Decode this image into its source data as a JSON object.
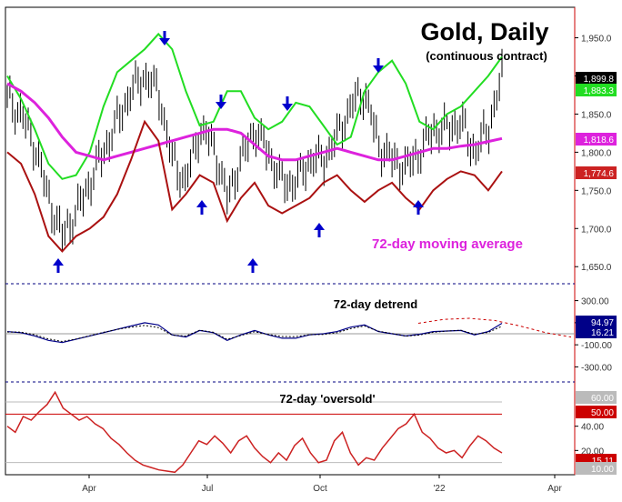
{
  "chart_data": {
    "type": "line",
    "title": "Gold, Daily",
    "subtitle": "(continuous contract)",
    "x_axis": {
      "ticks": [
        "Apr",
        "Jul",
        "Oct",
        "'22",
        "Apr"
      ]
    },
    "price_panel": {
      "ylim": [
        1630,
        1990
      ],
      "y_ticks": [
        1950,
        1900,
        1850,
        1800,
        1750,
        1700,
        1650
      ],
      "y_tick_labels": [
        "1,950.0",
        "1,900.0",
        "1,850.0",
        "1,800.0",
        "1,750.0",
        "1,700.0",
        "1,650.0"
      ],
      "annotation": "72-day moving average",
      "value_tags": [
        {
          "label": "1,899.8",
          "value": 1899.8,
          "color": "#000000"
        },
        {
          "label": "1,883.3",
          "value": 1883.3,
          "color": "#22dd22"
        },
        {
          "label": "1,818.6",
          "value": 1818.6,
          "color": "#dd22dd"
        },
        {
          "label": "1,774.6",
          "value": 1774.6,
          "color": "#cc2222"
        }
      ],
      "series": [
        {
          "name": "Upper band",
          "color": "#22dd22",
          "values": [
            1900,
            1870,
            1830,
            1785,
            1765,
            1770,
            1800,
            1860,
            1905,
            1920,
            1935,
            1955,
            1935,
            1880,
            1835,
            1840,
            1880,
            1880,
            1845,
            1830,
            1840,
            1865,
            1860,
            1835,
            1810,
            1820,
            1880,
            1905,
            1920,
            1890,
            1840,
            1830,
            1850,
            1860,
            1880,
            1900,
            1925
          ]
        },
        {
          "name": "Price",
          "color": "#000000",
          "values": [
            1870,
            1850,
            1810,
            1740,
            1690,
            1720,
            1760,
            1800,
            1840,
            1880,
            1900,
            1880,
            1790,
            1760,
            1830,
            1810,
            1740,
            1790,
            1830,
            1800,
            1760,
            1760,
            1790,
            1790,
            1820,
            1860,
            1880,
            1810,
            1790,
            1780,
            1800,
            1830,
            1830,
            1840,
            1800,
            1830,
            1900
          ]
        },
        {
          "name": "72-day moving average",
          "color": "#dd22dd",
          "values": [
            1890,
            1880,
            1865,
            1845,
            1820,
            1800,
            1795,
            1790,
            1795,
            1800,
            1805,
            1810,
            1815,
            1820,
            1825,
            1830,
            1830,
            1825,
            1810,
            1795,
            1790,
            1790,
            1795,
            1800,
            1805,
            1800,
            1795,
            1790,
            1790,
            1795,
            1800,
            1805,
            1805,
            1808,
            1810,
            1814,
            1818
          ]
        },
        {
          "name": "Lower band",
          "color": "#aa1111",
          "values": [
            1800,
            1785,
            1745,
            1690,
            1670,
            1690,
            1700,
            1715,
            1745,
            1790,
            1840,
            1815,
            1725,
            1745,
            1770,
            1760,
            1710,
            1740,
            1760,
            1730,
            1720,
            1730,
            1740,
            1760,
            1770,
            1750,
            1735,
            1750,
            1760,
            1740,
            1725,
            1750,
            1765,
            1775,
            1770,
            1750,
            1775
          ]
        }
      ]
    },
    "detrend_panel": {
      "label": "72-day detrend",
      "ylim": [
        -420,
        420
      ],
      "y_tick_labels": [
        "300.00",
        "100.00",
        "-100.00",
        "-300.00"
      ],
      "y_ticks": [
        300,
        100,
        -100,
        -300
      ],
      "value_tags": [
        {
          "label": "94.97",
          "value": 94.97,
          "color": "#000088"
        },
        {
          "label": "16.21",
          "value": 16.21,
          "color": "#000088"
        }
      ],
      "series": [
        {
          "name": "Detrend",
          "color": "#000088",
          "values": [
            20,
            10,
            -20,
            -60,
            -80,
            -50,
            -20,
            10,
            40,
            70,
            100,
            80,
            -10,
            -30,
            30,
            10,
            -60,
            -10,
            30,
            -10,
            -40,
            -40,
            -10,
            0,
            20,
            60,
            80,
            20,
            0,
            -20,
            -5,
            20,
            25,
            30,
            -10,
            20,
            95
          ]
        },
        {
          "name": "Projected cycle",
          "color": "#cc0000",
          "values": [
            95,
            130,
            140,
            120,
            70,
            10,
            -30
          ]
        }
      ]
    },
    "oversold_panel": {
      "label": "72-day 'oversold'",
      "ylim": [
        0,
        75
      ],
      "y_tick_labels": [
        "60.00",
        "50.00",
        "40.00",
        "20.00",
        "15.11",
        "10.00"
      ],
      "upper_line": 60,
      "lower_line": 50,
      "value_tags": [
        {
          "label": "60.00",
          "value": 60,
          "color": "#bbbbbb"
        },
        {
          "label": "50.00",
          "value": 50,
          "color": "#cc0000"
        },
        {
          "label": "15.11",
          "value": 15.11,
          "color": "#cc0000"
        },
        {
          "label": "10.00",
          "value": 10,
          "color": "#bbbbbb"
        }
      ],
      "series": [
        {
          "name": "Oversold",
          "color": "#cc2222",
          "values": [
            40,
            35,
            48,
            45,
            52,
            58,
            68,
            55,
            50,
            45,
            48,
            42,
            38,
            30,
            25,
            18,
            12,
            8,
            6,
            4,
            3,
            2,
            8,
            18,
            28,
            25,
            32,
            26,
            18,
            28,
            32,
            22,
            15,
            10,
            18,
            12,
            24,
            30,
            18,
            10,
            12,
            28,
            35,
            18,
            8,
            14,
            12,
            22,
            30,
            38,
            42,
            50,
            35,
            30,
            22,
            18,
            20,
            14,
            24,
            32,
            28,
            22,
            18
          ]
        }
      ]
    },
    "arrows": {
      "down": [
        "Mar-high",
        "Jun-high",
        "Jul-high",
        "Sep-high",
        "Nov-high"
      ],
      "up": [
        "Mar-low",
        "Jul-low",
        "Aug-low",
        "Oct-low",
        "Dec-low"
      ]
    }
  }
}
